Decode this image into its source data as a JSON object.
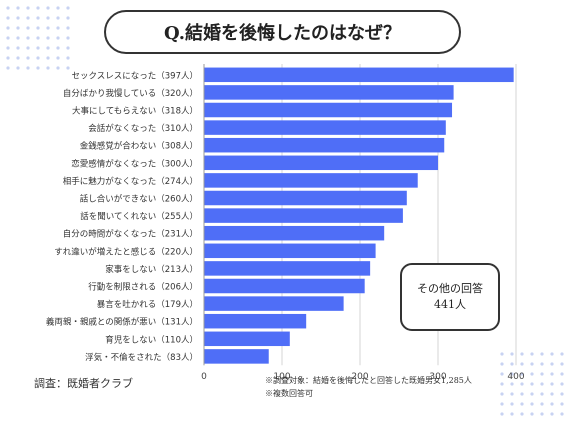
{
  "title": "Q.結婚を後悔したのはなぜ？",
  "chart_data": {
    "type": "bar",
    "orientation": "horizontal",
    "categories": [
      "セックスレスになった（397人）",
      "自分ばかり我慢している（320人）",
      "大事にしてもらえない（318人）",
      "会話がなくなった（310人）",
      "金銭感覚が合わない（308人）",
      "恋愛感情がなくなった（300人）",
      "相手に魅力がなくなった（274人）",
      "話し合いができない（260人）",
      "話を聞いてくれない（255人）",
      "自分の時間がなくなった（231人）",
      "すれ違いが増えたと感じる（220人）",
      "家事をしない（213人）",
      "行動を制限される（206人）",
      "暴言を吐かれる（179人）",
      "義両親・親戚との関係が悪い（131人）",
      "育児をしない（110人）",
      "浮気・不倫をされた（83人）"
    ],
    "values": [
      397,
      320,
      318,
      310,
      308,
      300,
      274,
      260,
      255,
      231,
      220,
      213,
      206,
      179,
      131,
      110,
      83
    ],
    "xlim": [
      0,
      400
    ],
    "xticks": [
      "0",
      "100",
      "200",
      "300",
      "400"
    ],
    "grid": true,
    "bar_color": "#4f6ef7"
  },
  "others_box": {
    "line1": "その他の回答",
    "line2": "441人"
  },
  "source": "調査：既婚者クラブ",
  "notes": [
    "※調査対象：結婚を後悔したと回答した既婚男女1,285人",
    "※複数回答可"
  ]
}
